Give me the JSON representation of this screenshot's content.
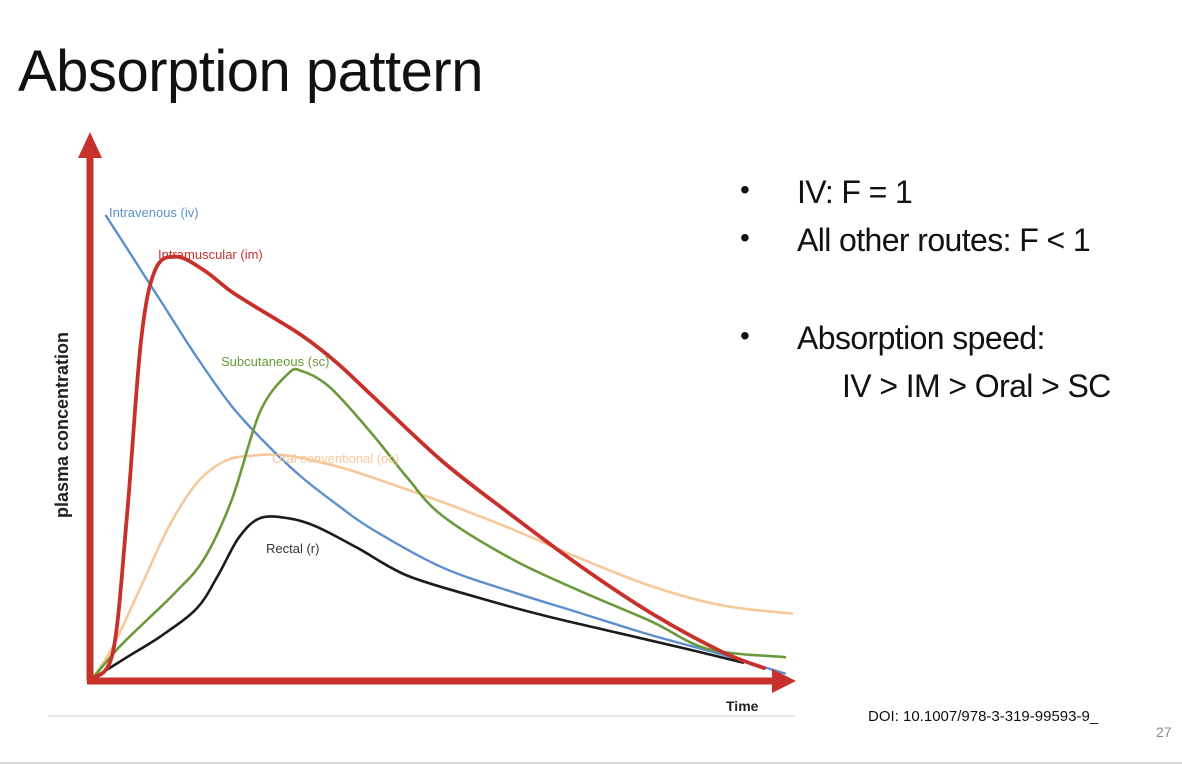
{
  "slide": {
    "title": "Absorption pattern",
    "bullets": [
      "IV: F = 1",
      "All other routes: F < 1",
      "Absorption speed:"
    ],
    "speed_order": "IV > IM > Oral > SC",
    "doi": "DOI: 10.1007/978-3-319-99593-9_",
    "page_number": "27"
  },
  "chart_data": {
    "type": "line",
    "title": "",
    "xlabel": "Time",
    "ylabel": "plasma concentration",
    "xlim": [
      0,
      10
    ],
    "ylim": [
      0,
      10
    ],
    "grid": false,
    "legend": "inline labels next to each curve",
    "axis_color": "#c8312b",
    "series": [
      {
        "name": "Intravenous (iv)",
        "color": "#5b8fcd",
        "points": [
          [
            0.2,
            8.5
          ],
          [
            0.6,
            7.7
          ],
          [
            1.0,
            6.9
          ],
          [
            1.5,
            5.9
          ],
          [
            2.0,
            5.0
          ],
          [
            2.5,
            4.3
          ],
          [
            3.0,
            3.7
          ],
          [
            3.5,
            3.2
          ],
          [
            4.0,
            2.75
          ],
          [
            5.0,
            2.05
          ],
          [
            6.0,
            1.6
          ],
          [
            7.0,
            1.2
          ],
          [
            8.0,
            0.8
          ],
          [
            9.0,
            0.45
          ],
          [
            9.9,
            0.1
          ]
        ]
      },
      {
        "name": "Intramuscular (im)",
        "color": "#c8312b",
        "points": [
          [
            0.0,
            0.0
          ],
          [
            0.3,
            0.5
          ],
          [
            0.5,
            3.0
          ],
          [
            0.7,
            6.2
          ],
          [
            0.9,
            7.5
          ],
          [
            1.2,
            7.75
          ],
          [
            1.6,
            7.5
          ],
          [
            2.0,
            7.1
          ],
          [
            2.5,
            6.7
          ],
          [
            3.0,
            6.3
          ],
          [
            3.5,
            5.8
          ],
          [
            4.0,
            5.2
          ],
          [
            5.0,
            4.0
          ],
          [
            6.0,
            3.0
          ],
          [
            7.0,
            2.05
          ],
          [
            8.0,
            1.2
          ],
          [
            9.0,
            0.5
          ],
          [
            9.6,
            0.2
          ]
        ]
      },
      {
        "name": "Subcutaneous (sc)",
        "color": "#6a9a3a",
        "points": [
          [
            0.0,
            0.0
          ],
          [
            0.4,
            0.6
          ],
          [
            0.8,
            1.1
          ],
          [
            1.2,
            1.6
          ],
          [
            1.6,
            2.2
          ],
          [
            2.0,
            3.3
          ],
          [
            2.4,
            4.9
          ],
          [
            2.8,
            5.6
          ],
          [
            3.0,
            5.65
          ],
          [
            3.4,
            5.35
          ],
          [
            4.0,
            4.5
          ],
          [
            4.5,
            3.7
          ],
          [
            5.0,
            3.0
          ],
          [
            6.0,
            2.2
          ],
          [
            7.0,
            1.6
          ],
          [
            8.0,
            1.05
          ],
          [
            8.8,
            0.55
          ],
          [
            9.9,
            0.4
          ]
        ]
      },
      {
        "name": "Oral conventional (oc)",
        "color": "#f6c89a",
        "points": [
          [
            0.0,
            0.0
          ],
          [
            0.3,
            0.6
          ],
          [
            0.7,
            1.7
          ],
          [
            1.1,
            2.8
          ],
          [
            1.5,
            3.6
          ],
          [
            1.9,
            4.0
          ],
          [
            2.3,
            4.1
          ],
          [
            2.8,
            4.1
          ],
          [
            3.5,
            3.9
          ],
          [
            4.0,
            3.7
          ],
          [
            5.0,
            3.25
          ],
          [
            6.0,
            2.75
          ],
          [
            7.0,
            2.2
          ],
          [
            8.0,
            1.7
          ],
          [
            9.0,
            1.35
          ],
          [
            10.0,
            1.2
          ]
        ]
      },
      {
        "name": "Rectal (r)",
        "color": "#1b1b1b",
        "points": [
          [
            0.0,
            0.0
          ],
          [
            0.5,
            0.4
          ],
          [
            1.0,
            0.8
          ],
          [
            1.5,
            1.3
          ],
          [
            1.8,
            1.9
          ],
          [
            2.1,
            2.6
          ],
          [
            2.4,
            2.95
          ],
          [
            2.8,
            2.95
          ],
          [
            3.2,
            2.8
          ],
          [
            3.8,
            2.4
          ],
          [
            4.5,
            1.9
          ],
          [
            5.5,
            1.5
          ],
          [
            6.5,
            1.15
          ],
          [
            7.5,
            0.85
          ],
          [
            8.5,
            0.55
          ],
          [
            9.3,
            0.3
          ]
        ]
      }
    ]
  }
}
